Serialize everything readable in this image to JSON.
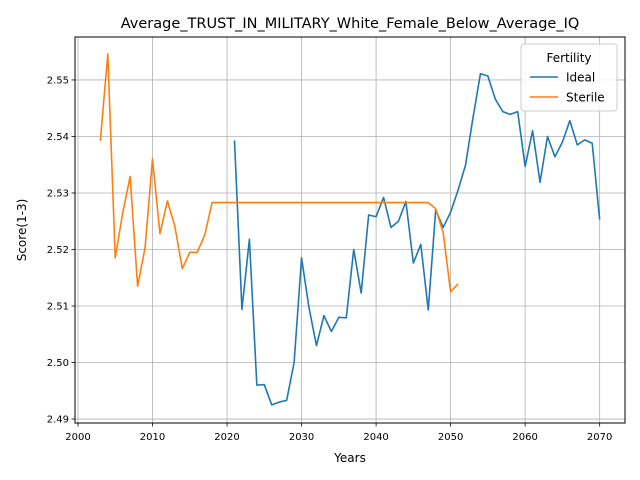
{
  "chart_data": {
    "type": "line",
    "title": "Average_TRUST_IN_MILITARY_White_Female_Below_Average_IQ",
    "xlabel": "Years",
    "ylabel": "Score(1-3)",
    "xlim": [
      1999.6,
      2073.4
    ],
    "ylim": [
      2.4893,
      2.5576
    ],
    "xticks": [
      2000,
      2010,
      2020,
      2030,
      2040,
      2050,
      2060,
      2070
    ],
    "xtick_labels": [
      "2000",
      "2010",
      "2020",
      "2030",
      "2040",
      "2050",
      "2060",
      "2070"
    ],
    "yticks": [
      2.49,
      2.5,
      2.51,
      2.52,
      2.53,
      2.54,
      2.55
    ],
    "ytick_labels": [
      "2.49",
      "2.50",
      "2.51",
      "2.52",
      "2.53",
      "2.54",
      "2.55"
    ],
    "grid": true,
    "legend": {
      "title": "Fertility",
      "position": "top-right"
    },
    "series": [
      {
        "name": "Ideal",
        "color": "#1f77b4",
        "x": [
          2021,
          2022,
          2023,
          2024,
          2025,
          2026,
          2027,
          2028,
          2029,
          2030,
          2031,
          2032,
          2033,
          2034,
          2035,
          2036,
          2037,
          2038,
          2039,
          2040,
          2041,
          2042,
          2043,
          2044,
          2045,
          2046,
          2047,
          2048,
          2049,
          2050,
          2051,
          2052,
          2053,
          2054,
          2055,
          2056,
          2057,
          2058,
          2059,
          2060,
          2061,
          2062,
          2063,
          2064,
          2065,
          2066,
          2067,
          2068,
          2069,
          2070
        ],
        "values": [
          2.5393,
          2.5094,
          2.5218,
          2.496,
          2.4961,
          2.4925,
          2.493,
          2.4933,
          2.5,
          2.5185,
          2.5097,
          2.503,
          2.5083,
          2.5055,
          2.508,
          2.5079,
          2.52,
          2.5123,
          2.5261,
          2.5258,
          2.5292,
          2.5239,
          2.525,
          2.5285,
          2.5176,
          2.5209,
          2.5093,
          2.527,
          2.5239,
          2.5266,
          2.5305,
          2.5349,
          2.5433,
          2.5511,
          2.5507,
          2.5466,
          2.5444,
          2.5439,
          2.5444,
          2.5347,
          2.541,
          2.5319,
          2.54,
          2.5364,
          2.539,
          2.5428,
          2.5385,
          2.5394,
          2.5388,
          2.5253
        ]
      },
      {
        "name": "Sterile",
        "color": "#ff7f0e",
        "x": [
          2003,
          2004,
          2005,
          2006,
          2007,
          2008,
          2009,
          2010,
          2011,
          2012,
          2013,
          2014,
          2015,
          2016,
          2017,
          2018,
          2019,
          2020,
          2021,
          2022,
          2023,
          2024,
          2025,
          2026,
          2027,
          2028,
          2029,
          2030,
          2031,
          2032,
          2033,
          2034,
          2035,
          2036,
          2037,
          2038,
          2039,
          2040,
          2041,
          2042,
          2043,
          2044,
          2045,
          2046,
          2047,
          2048,
          2049,
          2050,
          2051
        ],
        "values": [
          2.5392,
          2.5546,
          2.5185,
          2.5265,
          2.5329,
          2.5135,
          2.5203,
          2.536,
          2.5228,
          2.5286,
          2.5241,
          2.5166,
          2.5195,
          2.5195,
          2.5225,
          2.5283,
          2.5283,
          2.5283,
          2.5283,
          2.5283,
          2.5283,
          2.5283,
          2.5283,
          2.5283,
          2.5283,
          2.5283,
          2.5283,
          2.5283,
          2.5283,
          2.5283,
          2.5283,
          2.5283,
          2.5283,
          2.5283,
          2.5283,
          2.5283,
          2.5283,
          2.5283,
          2.5283,
          2.5283,
          2.5283,
          2.5283,
          2.5283,
          2.5283,
          2.5283,
          2.5272,
          2.523,
          2.5125,
          2.5139
        ]
      }
    ]
  }
}
